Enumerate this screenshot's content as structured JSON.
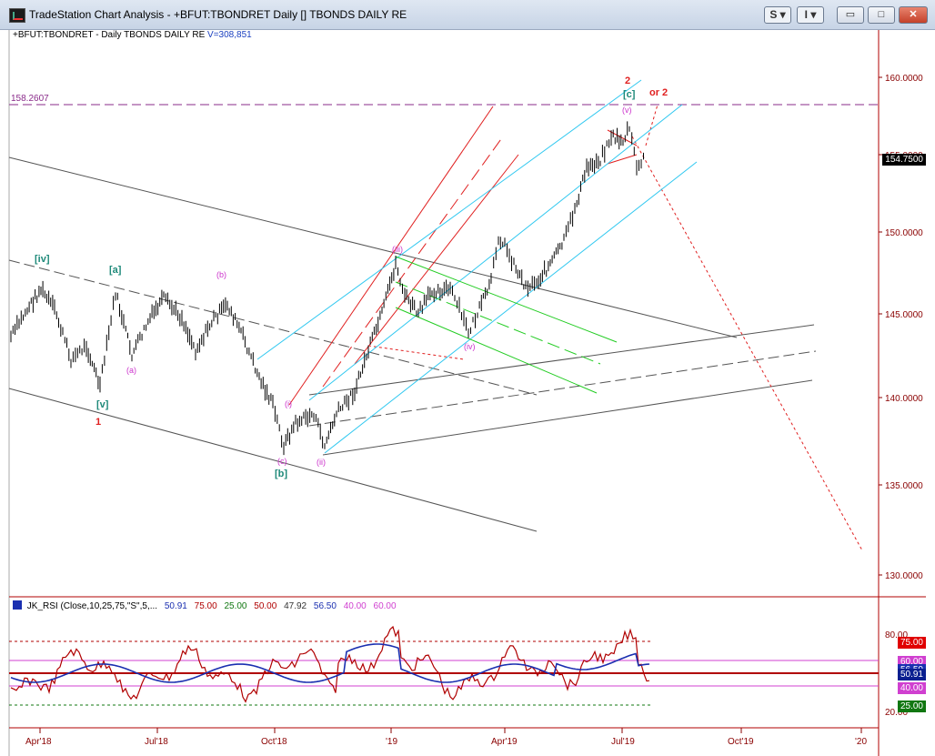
{
  "window": {
    "title": "TradeStation Chart Analysis - +BFUT:TBONDRET Daily [] TBONDS DAILY RE",
    "btn_s": "S",
    "btn_i": "I",
    "minimize": "▭",
    "maximize": "□",
    "close": "✕"
  },
  "chart": {
    "symbol": "+BFUT:TBONDRET - Daily  TBONDS DAILY RE",
    "volume": "V=308,851",
    "level_label": "158.2607",
    "last_price": "154.7500",
    "price_ticks": [
      "160.0000",
      "155.0000",
      "150.0000",
      "145.0000",
      "140.0000",
      "135.0000",
      "130.0000"
    ],
    "date_ticks": [
      "Apr'18",
      "Jul'18",
      "Oct'18",
      "'19",
      "Apr'19",
      "Jul'19",
      "Oct'19",
      "'20"
    ],
    "wave_labels": {
      "w1": "1",
      "w2": "2",
      "or2": "or 2",
      "iv_big": "[iv]",
      "v_big": "[v]",
      "a_big": "[a]",
      "b_big": "[b]",
      "c_big": "[c]",
      "a_small": "(a)",
      "b_small": "(b)",
      "c_small": "(c)",
      "i_small": "(i)",
      "ii_small": "(ii)",
      "iii_small": "(iii)",
      "iv_small": "(iv)",
      "v_small": "(v)"
    }
  },
  "rsi": {
    "name": "JK_RSI (Close,10,25,75,\"S\",5,...",
    "v1": "50.91",
    "v2": "75.00",
    "v3": "25.00",
    "v4": "50.00",
    "v5": "47.92",
    "v6": "56.50",
    "v7": "40.00",
    "v8": "60.00",
    "axis_80": "80.00",
    "axis_20": "20.00",
    "box_75": "75.00",
    "box_60": "60.00",
    "box_56": "56.50",
    "box_50": "50.91",
    "box_40": "40.00",
    "box_25": "25.00"
  },
  "colors": {
    "price_axis": "#8a0000",
    "bars": "#000000",
    "cyan_channel": "#30c8f0",
    "red_channel": "#e02020",
    "green_channel": "#22cc22",
    "gray_channel": "#555555",
    "magenta_label": "#cc33cc",
    "teal_label": "#1f8a7a"
  }
}
